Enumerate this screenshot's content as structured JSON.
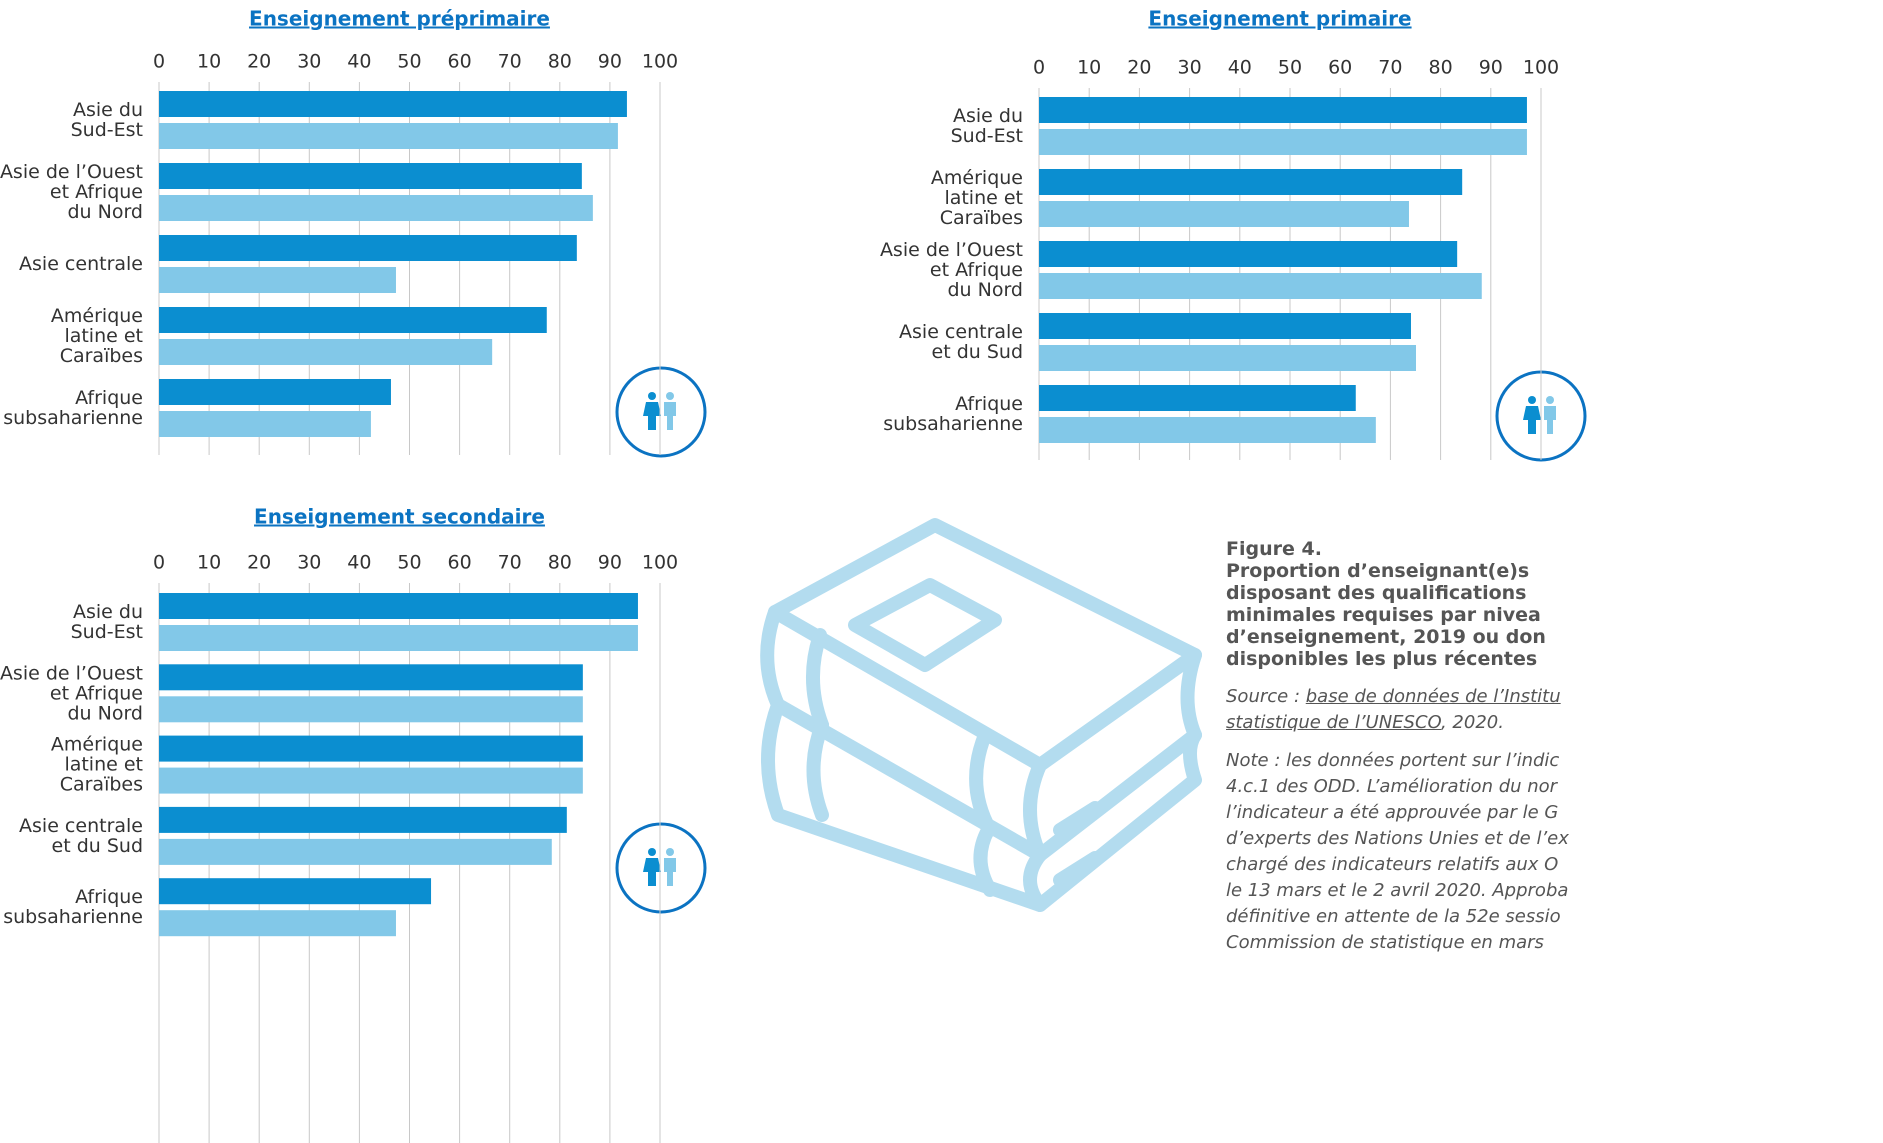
{
  "chart_data": [
    {
      "type": "bar",
      "orientation": "horizontal",
      "title": "Enseignement préprimaire",
      "categories": [
        [
          "Asie du",
          "Sud-Est"
        ],
        [
          "Asie de l’Ouest",
          "et Afrique",
          "du Nord"
        ],
        [
          "Asie centrale"
        ],
        [
          "Amérique",
          "latine et",
          "Caraïbes"
        ],
        [
          "Afrique",
          "subsaharienne"
        ]
      ],
      "series": [
        {
          "color": "#0b8ed0",
          "values": [
            93.4,
            84.4,
            83.4,
            77.4,
            46.3
          ]
        },
        {
          "color": "#82c8e8",
          "values": [
            91.6,
            86.6,
            47.3,
            66.5,
            42.3
          ]
        }
      ],
      "xlim": [
        0,
        100
      ],
      "xticks": [
        0,
        10,
        20,
        30,
        40,
        50,
        60,
        70,
        80,
        90,
        100
      ],
      "grid": true
    },
    {
      "type": "bar",
      "orientation": "horizontal",
      "title": "Enseignement primaire",
      "categories": [
        [
          "Asie du",
          "Sud-Est"
        ],
        [
          "Amérique",
          "latine et",
          "Caraïbes"
        ],
        [
          "Asie de l’Ouest",
          "et Afrique",
          "du Nord"
        ],
        [
          "Asie centrale",
          "et du Sud"
        ],
        [
          "Afrique",
          "subsaharienne"
        ]
      ],
      "series": [
        {
          "color": "#0b8ed0",
          "values": [
            97.2,
            84.3,
            83.3,
            74.1,
            63.1
          ]
        },
        {
          "color": "#82c8e8",
          "values": [
            97.2,
            73.7,
            88.2,
            75.1,
            67.1
          ]
        }
      ],
      "xlim": [
        0,
        100
      ],
      "xticks": [
        0,
        10,
        20,
        30,
        40,
        50,
        60,
        70,
        80,
        90,
        100
      ],
      "grid": true
    },
    {
      "type": "bar",
      "orientation": "horizontal",
      "title": "Enseignement secondaire",
      "categories": [
        [
          "Asie du",
          "Sud-Est"
        ],
        [
          "Asie de l’Ouest",
          "et Afrique",
          "du Nord"
        ],
        [
          "Amérique",
          "latine et",
          "Caraïbes"
        ],
        [
          "Asie centrale",
          "et du Sud"
        ],
        [
          "Afrique",
          "subsaharienne"
        ]
      ],
      "series": [
        {
          "color": "#0b8ed0",
          "values": [
            95.6,
            84.6,
            84.6,
            81.4,
            54.3
          ]
        },
        {
          "color": "#82c8e8",
          "values": [
            95.6,
            84.6,
            84.6,
            78.4,
            47.3
          ]
        }
      ],
      "xlim": [
        0,
        100
      ],
      "xticks": [
        0,
        10,
        20,
        30,
        40,
        50,
        60,
        70,
        80,
        90,
        100
      ],
      "grid": true
    }
  ],
  "figure": {
    "label": "Figure 4.",
    "title": [
      "Proportion d’enseignant(e)s",
      "disposant des qualifications",
      "minimales requises par nivea",
      "d’enseignement, 2019 ou don",
      "disponibles les plus récentes"
    ],
    "source": {
      "prefix": "Source : ",
      "link": [
        "base de données de l’Institu",
        "statistique de l’UNESCO"
      ],
      "suffix": ", 2020."
    },
    "note": [
      "Note : les données portent sur l’indic",
      "4.c.1 des ODD. L’amélioration du nor",
      "l’indicateur a été approuvée par le G",
      "d’experts des Nations Unies et de l’ex",
      "chargé des indicateurs relatifs aux O",
      "le 13 mars et le 2 avril 2020. Approba",
      "définitive en attente de la 52e sessio",
      "Commission de statistique en mars"
    ]
  }
}
